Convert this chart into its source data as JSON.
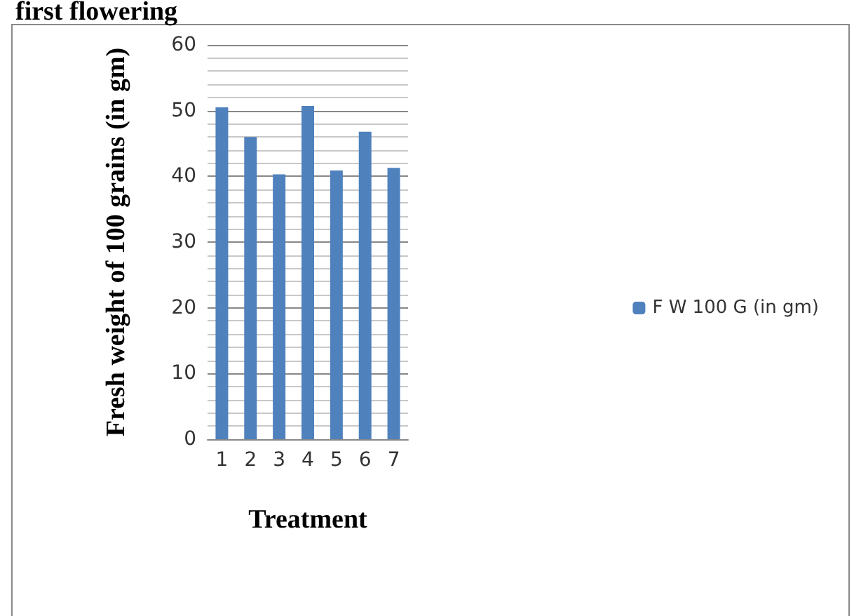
{
  "chart_data": {
    "type": "bar",
    "title": "first flowering",
    "xlabel": "Treatment",
    "ylabel": "Fresh weight of 100 grains (in gm)",
    "categories": [
      "1",
      "2",
      "3",
      "4",
      "5",
      "6",
      "7"
    ],
    "series": [
      {
        "name": "F W 100 G (in gm)",
        "color": "#4f81bd",
        "values": [
          50.5,
          46,
          40.3,
          50.7,
          40.9,
          46.8,
          41.3
        ]
      }
    ],
    "ylim": [
      0,
      60
    ],
    "yticks": [
      0,
      10,
      20,
      30,
      40,
      50,
      60
    ],
    "grid": "y",
    "legend": "right"
  }
}
